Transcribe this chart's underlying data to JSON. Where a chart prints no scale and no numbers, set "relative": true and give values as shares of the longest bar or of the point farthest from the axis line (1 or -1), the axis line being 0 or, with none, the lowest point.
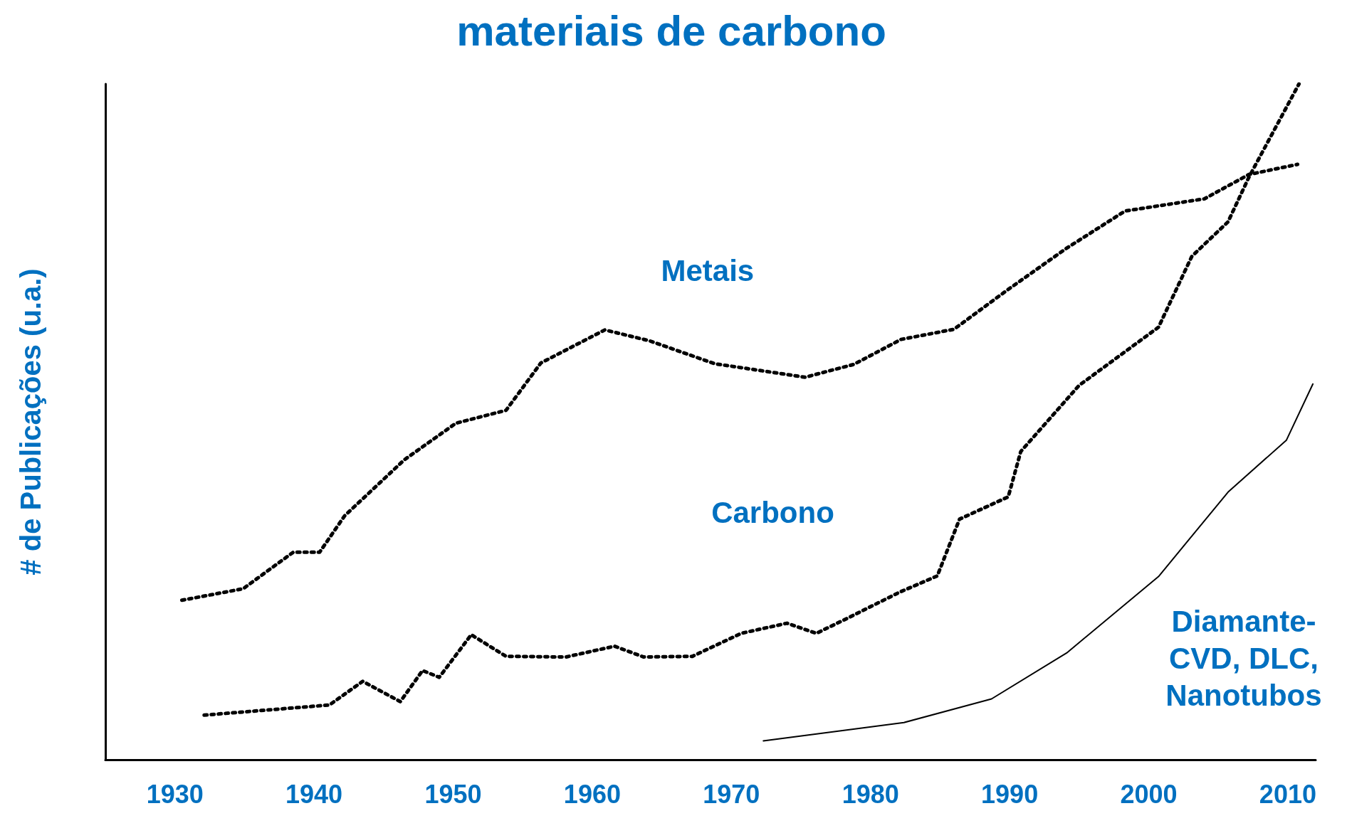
{
  "chart_data": {
    "type": "line",
    "title": "materiais de carbono",
    "ylabel": "# de Publicações (u.a.)",
    "relative": true,
    "xlim": [
      1925,
      2012
    ],
    "xticks": [
      1930,
      1940,
      1950,
      1960,
      1970,
      1980,
      1990,
      2000,
      2010
    ],
    "grid": false,
    "legend": false,
    "marker": "none",
    "series": [
      {
        "name": "Metais",
        "color": "#000000",
        "line_style": "dotted",
        "x": [
          1930.5,
          1934.9,
          1938.5,
          1940.4,
          1942.2,
          1946.5,
          1950.2,
          1953.8,
          1956.3,
          1960.9,
          1964.1,
          1968.8,
          1975.3,
          1978.8,
          1982.2,
          1986.0,
          1989.9,
          1994.1,
          1998.3,
          2004.0,
          2007.2,
          2010.7
        ],
        "values": [
          0.236,
          0.253,
          0.307,
          0.307,
          0.361,
          0.444,
          0.498,
          0.517,
          0.587,
          0.636,
          0.62,
          0.586,
          0.566,
          0.585,
          0.622,
          0.637,
          0.696,
          0.757,
          0.812,
          0.83,
          0.866,
          0.881
        ]
      },
      {
        "name": "Carbono",
        "color": "#000000",
        "line_style": "dotted",
        "x": [
          1932.1,
          1941.1,
          1943.5,
          1946.2,
          1947.8,
          1949.0,
          1951.3,
          1953.8,
          1958.1,
          1961.6,
          1963.7,
          1967.2,
          1970.7,
          1974.0,
          1976.1,
          1978.5,
          1982.1,
          1984.8,
          1986.4,
          1989.9,
          1990.8,
          1995.0,
          2000.7,
          2003.1,
          2005.7,
          2007.2,
          2010.8
        ],
        "values": [
          0.066,
          0.081,
          0.116,
          0.086,
          0.132,
          0.122,
          0.185,
          0.153,
          0.152,
          0.168,
          0.152,
          0.153,
          0.187,
          0.202,
          0.187,
          0.211,
          0.248,
          0.272,
          0.356,
          0.389,
          0.456,
          0.554,
          0.64,
          0.745,
          0.796,
          0.862,
          1.0
        ]
      },
      {
        "name": "Diamante-\nCVD, DLC,\nNanotubos",
        "color": "#000000",
        "line_style": "solid",
        "x": [
          1972.3,
          1982.4,
          1988.7,
          1994.1,
          2000.7,
          2005.7,
          2009.9,
          2011.8
        ],
        "values": [
          0.028,
          0.055,
          0.09,
          0.158,
          0.271,
          0.396,
          0.473,
          0.556
        ]
      }
    ]
  }
}
